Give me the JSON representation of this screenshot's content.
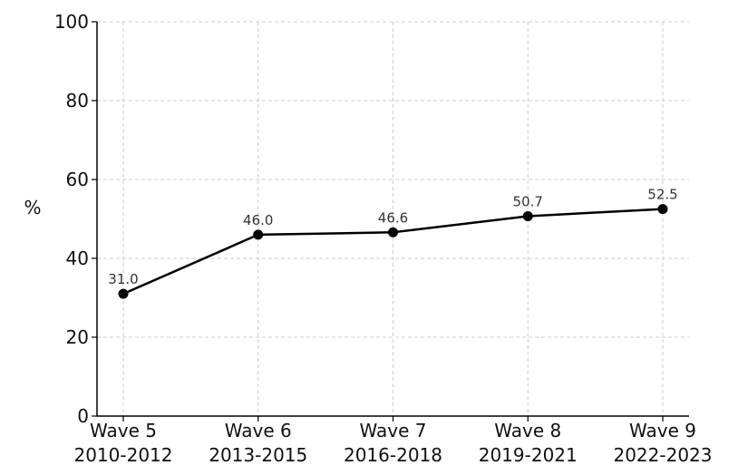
{
  "chart_data": {
    "type": "line",
    "categories": [
      [
        "Wave 5",
        "2010-2012"
      ],
      [
        "Wave 6",
        "2013-2015"
      ],
      [
        "Wave 7",
        "2016-2018"
      ],
      [
        "Wave 8",
        "2019-2021"
      ],
      [
        "Wave 9",
        "2022-2023"
      ]
    ],
    "values": [
      31.0,
      46.0,
      46.6,
      50.7,
      52.5
    ],
    "data_labels": [
      "31.0",
      "46.0",
      "46.6",
      "50.7",
      "52.5"
    ],
    "title": "",
    "xlabel": "",
    "ylabel": "%",
    "ylim": [
      0,
      100
    ],
    "yticks": [
      0,
      20,
      40,
      60,
      80,
      100
    ],
    "grid": true,
    "line_color": "#000000",
    "grid_color": "#cccccc"
  }
}
